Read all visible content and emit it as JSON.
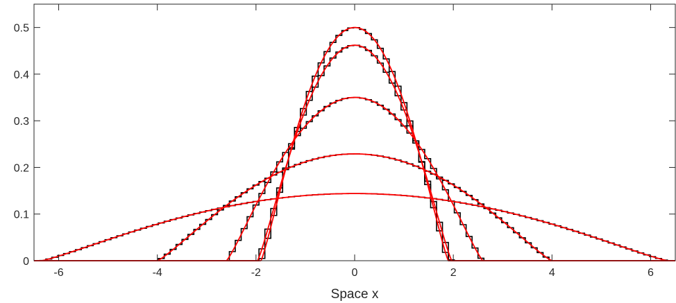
{
  "chart_data": {
    "type": "line",
    "title": "",
    "xlabel": "Space x",
    "ylabel": "",
    "xlim": [
      -6.5,
      6.5
    ],
    "ylim": [
      0,
      0.55
    ],
    "xticks": [
      -6,
      -4,
      -2,
      0,
      2,
      4,
      6
    ],
    "xtick_labels": [
      "-6",
      "-4",
      "-2",
      "0",
      "2",
      "4",
      "6"
    ],
    "yticks": [
      0,
      0.1,
      0.2,
      0.3,
      0.4,
      0.5
    ],
    "ytick_labels": [
      "0",
      "0.1",
      "0.2",
      "0.3",
      "0.4",
      "0.5"
    ],
    "grid": false,
    "legend": "none",
    "colors": {
      "exact": "#ff0000",
      "numerical": "#000000",
      "axes": "#262626"
    },
    "series_style": {
      "exact": "smooth red curve",
      "numerical": "black staircase"
    },
    "series": [
      {
        "peak": 0.5,
        "half_width": 1.9
      },
      {
        "peak": 0.462,
        "half_width": 1.97
      },
      {
        "peak": 0.35,
        "half_width": 2.6
      },
      {
        "peak": 0.229,
        "half_width": 4.0
      },
      {
        "peak": 0.144,
        "half_width": 6.35
      }
    ]
  }
}
